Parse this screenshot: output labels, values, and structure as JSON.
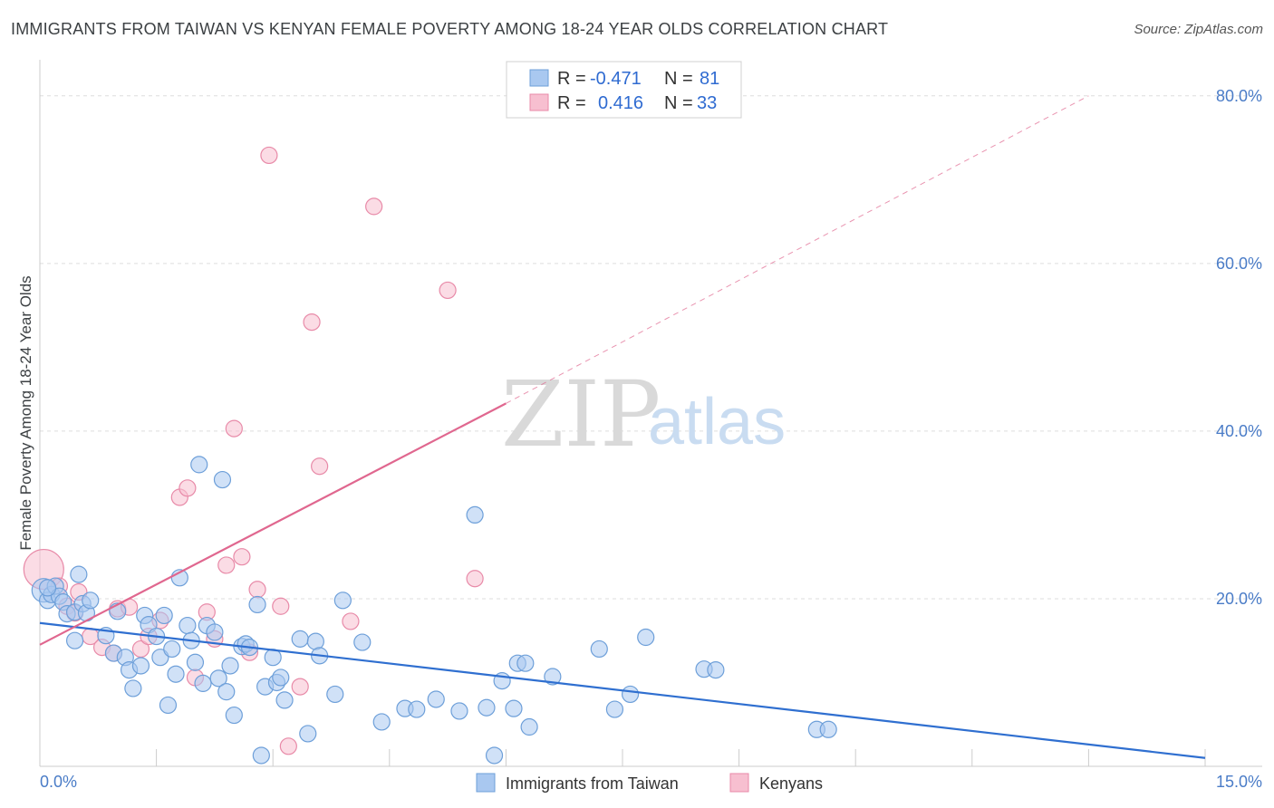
{
  "title": "IMMIGRANTS FROM TAIWAN VS KENYAN FEMALE POVERTY AMONG 18-24 YEAR OLDS CORRELATION CHART",
  "source": "Source: ZipAtlas.com",
  "watermark": {
    "zip": "ZIP",
    "atlas": "atlas"
  },
  "colors": {
    "taiwan_fill": "#a9c8f0",
    "taiwan_stroke": "#6d9fd9",
    "taiwan_line": "#2f6fd0",
    "kenya_fill": "#f7bfd0",
    "kenya_stroke": "#e88aa8",
    "kenya_line": "#e0678f",
    "tick_text": "#4a7cc7",
    "grid": "#dddddd"
  },
  "legend": {
    "r_label": "R =",
    "n_label": "N =",
    "taiwan": {
      "r": "-0.471",
      "n": "81"
    },
    "kenya": {
      "r": "0.416",
      "n": "33"
    }
  },
  "chart_data": {
    "type": "scatter",
    "title": "IMMIGRANTS FROM TAIWAN VS KENYAN FEMALE POVERTY AMONG 18-24 YEAR OLDS CORRELATION CHART",
    "xlabel": "",
    "ylabel": "Female Poverty Among 18-24 Year Olds",
    "xlim": [
      0,
      15
    ],
    "ylim": [
      0,
      83
    ],
    "x_tick_labels": [
      "0.0%",
      "15.0%"
    ],
    "y_ticks": [
      20,
      40,
      60,
      80
    ],
    "y_tick_labels": [
      "20.0%",
      "40.0%",
      "60.0%",
      "80.0%"
    ],
    "grid": true,
    "legend_position": "top-center",
    "series": [
      {
        "name": "Immigrants from Taiwan",
        "trend": {
          "x": [
            0,
            15
          ],
          "y": [
            17.1,
            1.0
          ]
        },
        "points": [
          {
            "x": 0.05,
            "y": 21.0
          },
          {
            "x": 0.1,
            "y": 19.8
          },
          {
            "x": 0.15,
            "y": 20.5
          },
          {
            "x": 0.2,
            "y": 21.5
          },
          {
            "x": 0.25,
            "y": 20.3
          },
          {
            "x": 0.3,
            "y": 19.6
          },
          {
            "x": 0.35,
            "y": 18.2
          },
          {
            "x": 0.45,
            "y": 18.4
          },
          {
            "x": 0.5,
            "y": 22.9
          },
          {
            "x": 0.55,
            "y": 19.4
          },
          {
            "x": 0.6,
            "y": 18.3
          },
          {
            "x": 0.65,
            "y": 19.8
          },
          {
            "x": 0.45,
            "y": 15.0
          },
          {
            "x": 0.85,
            "y": 15.6
          },
          {
            "x": 0.95,
            "y": 13.5
          },
          {
            "x": 1.0,
            "y": 18.5
          },
          {
            "x": 1.1,
            "y": 13.0
          },
          {
            "x": 1.15,
            "y": 11.5
          },
          {
            "x": 1.2,
            "y": 9.3
          },
          {
            "x": 1.3,
            "y": 12.0
          },
          {
            "x": 1.35,
            "y": 18.0
          },
          {
            "x": 1.4,
            "y": 16.9
          },
          {
            "x": 1.5,
            "y": 15.5
          },
          {
            "x": 1.55,
            "y": 13.0
          },
          {
            "x": 1.6,
            "y": 18.0
          },
          {
            "x": 1.65,
            "y": 7.3
          },
          {
            "x": 1.7,
            "y": 14.0
          },
          {
            "x": 1.75,
            "y": 11.0
          },
          {
            "x": 1.8,
            "y": 22.5
          },
          {
            "x": 1.9,
            "y": 16.8
          },
          {
            "x": 1.95,
            "y": 15.0
          },
          {
            "x": 2.0,
            "y": 12.4
          },
          {
            "x": 2.05,
            "y": 36.0
          },
          {
            "x": 2.1,
            "y": 9.9
          },
          {
            "x": 2.15,
            "y": 16.8
          },
          {
            "x": 2.25,
            "y": 16.0
          },
          {
            "x": 2.3,
            "y": 10.5
          },
          {
            "x": 2.35,
            "y": 34.2
          },
          {
            "x": 2.4,
            "y": 8.9
          },
          {
            "x": 2.45,
            "y": 12.0
          },
          {
            "x": 2.5,
            "y": 6.1
          },
          {
            "x": 2.6,
            "y": 14.3
          },
          {
            "x": 2.65,
            "y": 14.6
          },
          {
            "x": 2.7,
            "y": 14.2
          },
          {
            "x": 2.8,
            "y": 19.3
          },
          {
            "x": 2.85,
            "y": 1.3
          },
          {
            "x": 2.9,
            "y": 9.5
          },
          {
            "x": 3.0,
            "y": 13.0
          },
          {
            "x": 3.05,
            "y": 10.0
          },
          {
            "x": 3.1,
            "y": 10.6
          },
          {
            "x": 3.15,
            "y": 7.9
          },
          {
            "x": 3.35,
            "y": 15.2
          },
          {
            "x": 3.45,
            "y": 3.9
          },
          {
            "x": 3.55,
            "y": 14.9
          },
          {
            "x": 3.6,
            "y": 13.2
          },
          {
            "x": 3.8,
            "y": 8.6
          },
          {
            "x": 3.9,
            "y": 19.8
          },
          {
            "x": 4.15,
            "y": 14.8
          },
          {
            "x": 4.4,
            "y": 5.3
          },
          {
            "x": 4.7,
            "y": 6.9
          },
          {
            "x": 4.85,
            "y": 6.8
          },
          {
            "x": 5.1,
            "y": 8.0
          },
          {
            "x": 5.4,
            "y": 6.6
          },
          {
            "x": 5.6,
            "y": 30.0
          },
          {
            "x": 5.75,
            "y": 7.0
          },
          {
            "x": 5.85,
            "y": 1.3
          },
          {
            "x": 5.95,
            "y": 10.2
          },
          {
            "x": 6.1,
            "y": 6.9
          },
          {
            "x": 6.15,
            "y": 12.3
          },
          {
            "x": 6.25,
            "y": 12.3
          },
          {
            "x": 6.3,
            "y": 4.7
          },
          {
            "x": 6.6,
            "y": 10.7
          },
          {
            "x": 7.2,
            "y": 14.0
          },
          {
            "x": 7.4,
            "y": 6.8
          },
          {
            "x": 7.6,
            "y": 8.6
          },
          {
            "x": 7.8,
            "y": 15.4
          },
          {
            "x": 8.55,
            "y": 11.6
          },
          {
            "x": 8.7,
            "y": 11.5
          },
          {
            "x": 10.0,
            "y": 4.4
          },
          {
            "x": 10.15,
            "y": 4.4
          },
          {
            "x": 0.1,
            "y": 21.3
          }
        ]
      },
      {
        "name": "Kenyans",
        "trend": {
          "x": [
            0,
            6.0
          ],
          "y": [
            14.5,
            43.3
          ]
        },
        "trend_extended": {
          "x": [
            6.0,
            13.5
          ],
          "y": [
            43.3,
            80.0
          ]
        },
        "points": [
          {
            "x": 0.05,
            "y": 23.5
          },
          {
            "x": 0.25,
            "y": 21.5
          },
          {
            "x": 0.35,
            "y": 19.1
          },
          {
            "x": 0.45,
            "y": 18.3
          },
          {
            "x": 0.5,
            "y": 20.8
          },
          {
            "x": 0.65,
            "y": 15.5
          },
          {
            "x": 0.8,
            "y": 14.2
          },
          {
            "x": 0.95,
            "y": 13.5
          },
          {
            "x": 1.0,
            "y": 18.8
          },
          {
            "x": 1.15,
            "y": 19.0
          },
          {
            "x": 1.3,
            "y": 14.0
          },
          {
            "x": 1.4,
            "y": 15.5
          },
          {
            "x": 1.55,
            "y": 17.4
          },
          {
            "x": 1.8,
            "y": 32.1
          },
          {
            "x": 1.9,
            "y": 33.2
          },
          {
            "x": 2.0,
            "y": 10.6
          },
          {
            "x": 2.15,
            "y": 18.4
          },
          {
            "x": 2.25,
            "y": 15.2
          },
          {
            "x": 2.4,
            "y": 24.0
          },
          {
            "x": 2.5,
            "y": 40.3
          },
          {
            "x": 2.6,
            "y": 25.0
          },
          {
            "x": 2.7,
            "y": 13.6
          },
          {
            "x": 2.8,
            "y": 21.1
          },
          {
            "x": 2.95,
            "y": 72.9
          },
          {
            "x": 3.1,
            "y": 19.1
          },
          {
            "x": 3.2,
            "y": 2.4
          },
          {
            "x": 3.35,
            "y": 9.5
          },
          {
            "x": 3.5,
            "y": 53.0
          },
          {
            "x": 3.6,
            "y": 35.8
          },
          {
            "x": 4.0,
            "y": 17.3
          },
          {
            "x": 4.3,
            "y": 66.8
          },
          {
            "x": 5.25,
            "y": 56.8
          },
          {
            "x": 5.6,
            "y": 22.4
          }
        ]
      }
    ]
  },
  "bottom_legend": {
    "taiwan_label": "Immigrants from Taiwan",
    "kenya_label": "Kenyans"
  }
}
